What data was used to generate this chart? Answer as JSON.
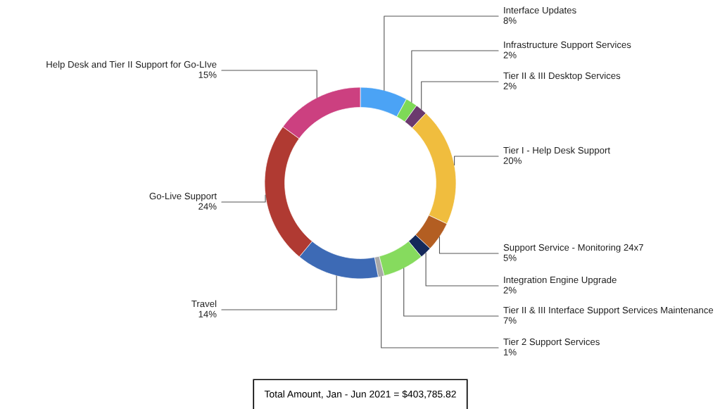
{
  "chart_data": {
    "type": "donut",
    "categories": [
      "Interface Updates",
      "Infrastructure Support Services",
      "Tier II & III Desktop Services",
      "Tier I - Help Desk Support",
      "Support Service - Monitoring 24x7",
      "Integration Engine Upgrade",
      "Tier II & III Interface Support Services Maintenance",
      "Tier 2 Support Services",
      "Travel",
      "Go-Live Support",
      "Help Desk and Tier II Support for Go-LIve"
    ],
    "values": [
      8,
      2,
      2,
      20,
      5,
      2,
      7,
      1,
      14,
      24,
      15
    ],
    "value_labels": [
      "8%",
      "2%",
      "2%",
      "20%",
      "5%",
      "2%",
      "7%",
      "1%",
      "14%",
      "24%",
      "15%"
    ],
    "colors": [
      "#4ba3f5",
      "#7ed957",
      "#6b3a6e",
      "#f0bd3e",
      "#b35e22",
      "#14295a",
      "#86db5e",
      "#a9a9a9",
      "#3d6ab5",
      "#b03a32",
      "#cc4080"
    ],
    "annotations": [
      "Total Amount, Jan - Jun 2021 = $403,785.82"
    ]
  }
}
